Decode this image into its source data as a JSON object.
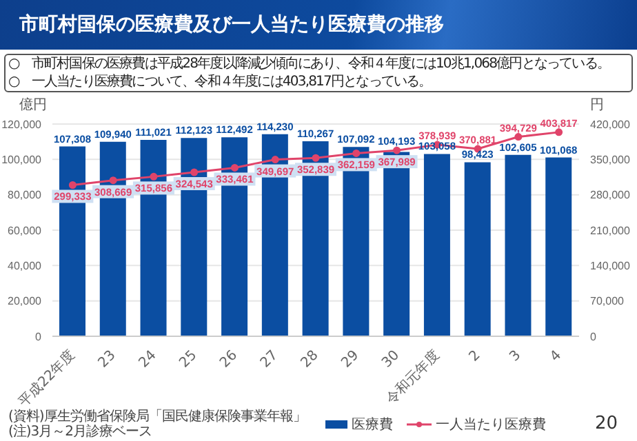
{
  "chart_data": {
    "type": "bar",
    "title": "市町村国保の医療費及び一人当たり医療費の推移",
    "categories": [
      "平成22年度",
      "23",
      "24",
      "25",
      "26",
      "27",
      "28",
      "29",
      "30",
      "令和元年度",
      "2",
      "3",
      "4"
    ],
    "series": [
      {
        "name": "医療費",
        "color": "#0b4ea2",
        "values": [
          107308,
          109940,
          111021,
          112123,
          112492,
          114230,
          110267,
          107092,
          104193,
          103058,
          98423,
          102605,
          101068
        ],
        "value_labels": [
          "107,308",
          "109,940",
          "111,021",
          "112,123",
          "112,492",
          "114,230",
          "110,267",
          "107,092",
          "104,193",
          "103,058",
          "98,423",
          "102,605",
          "101,068"
        ]
      },
      {
        "name": "一人当たり医療費",
        "type": "line",
        "axis": "y2",
        "color": "#e0446a",
        "values": [
          299333,
          308669,
          315856,
          324543,
          333461,
          349697,
          352839,
          362159,
          367989,
          378939,
          370881,
          394729,
          403817
        ],
        "value_labels": [
          "299,333",
          "308,669",
          "315,856",
          "324,543",
          "333,461",
          "349,697",
          "352,839",
          "362,159",
          "367,989",
          "378,939",
          "370,881",
          "394,729",
          "403,817"
        ]
      }
    ],
    "ylabel": "億円",
    "y2label": "円",
    "ylim": [
      0,
      120000
    ],
    "yticks": [
      0,
      {
        "value": 20000,
        "label": "20,000"
      },
      {
        "value": 40000,
        "label": "40,000"
      },
      {
        "value": 60000,
        "label": "60,000"
      },
      {
        "value": 80000,
        "label": "80,000"
      },
      {
        "value": 100000,
        "label": "100,000"
      },
      {
        "value": 120000,
        "label": "120,000"
      }
    ],
    "y2lim": [
      0,
      420000
    ],
    "y2ticks": [
      0,
      {
        "value": 70000,
        "label": "70,000"
      },
      {
        "value": 140000,
        "label": "140,000"
      },
      {
        "value": 210000,
        "label": "210,000"
      },
      {
        "value": 280000,
        "label": "280,000"
      },
      {
        "value": 350000,
        "label": "350,000"
      },
      {
        "value": 420000,
        "label": "420,000"
      }
    ],
    "grid": "y",
    "legend": "bottom",
    "marker": "circle",
    "annotations": [
      "○　市町村国保の医療費は平成28年度以降減少傾向にあり、令和４年度には10兆1,068億円となっている。",
      "○　一人当たり医療費について、令和４年度には403,817円となっている。",
      "(資料)厚生労働省保険局「国民健康保険事業年報」",
      "(注)3月～2月診療ベース",
      "20"
    ]
  }
}
